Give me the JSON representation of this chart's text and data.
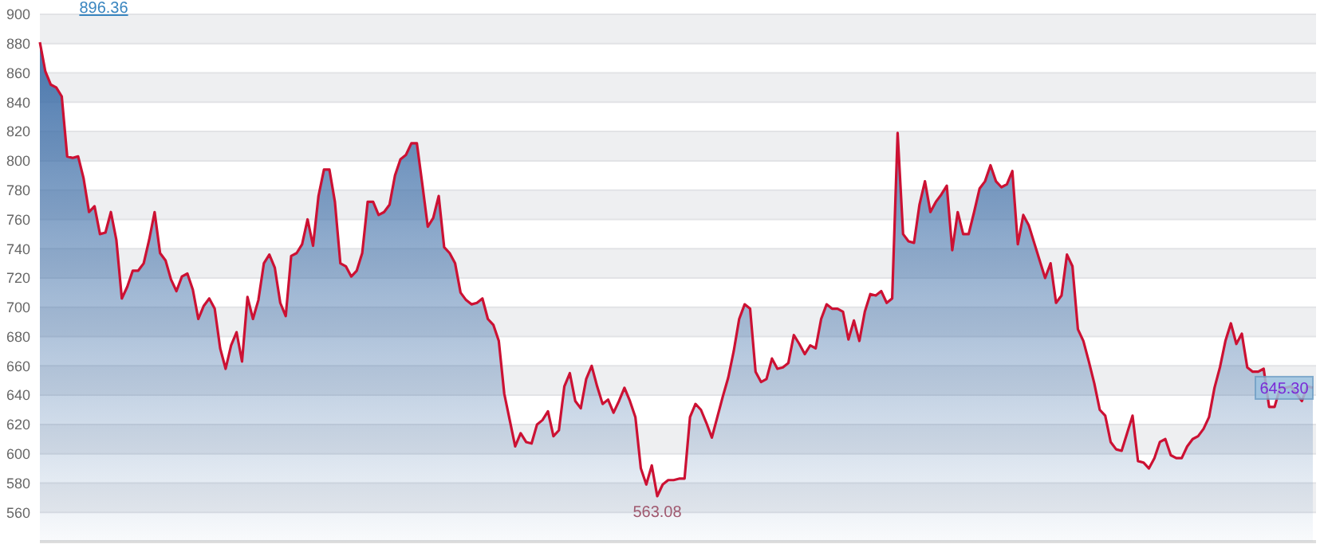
{
  "chart_data": {
    "type": "area",
    "categories": [
      null,
      null,
      null,
      null,
      null,
      null,
      null,
      null,
      null,
      null,
      null,
      null,
      null,
      null,
      null,
      null,
      null,
      null,
      null,
      null,
      null,
      null,
      null,
      null,
      null,
      null,
      null,
      null,
      null,
      null,
      null,
      null,
      null,
      null,
      null,
      null,
      null,
      null,
      null,
      null,
      null,
      null,
      null,
      null,
      null,
      null,
      null,
      null,
      null,
      null,
      null,
      null,
      null,
      null,
      null,
      null,
      null,
      null,
      null,
      null,
      null,
      null,
      null,
      null,
      null,
      null,
      null,
      null,
      null,
      null,
      null,
      null,
      null,
      null,
      null,
      null,
      null,
      null,
      null,
      null,
      null,
      null,
      null,
      null,
      null,
      null,
      null,
      null,
      null,
      null,
      null,
      null,
      null,
      null,
      null,
      null,
      null,
      null,
      null,
      null,
      null,
      null,
      null,
      null,
      null,
      null,
      null,
      null,
      null,
      null,
      null,
      null,
      null,
      null,
      null,
      null,
      null,
      null,
      null,
      null,
      null,
      null,
      null,
      null,
      null,
      null,
      null,
      null,
      null,
      null,
      null,
      null,
      null,
      null,
      null,
      null,
      null,
      null,
      null,
      null,
      null,
      null,
      null,
      null,
      null,
      null,
      null,
      null,
      null,
      null,
      null,
      null,
      null,
      null,
      null,
      null,
      null,
      null,
      null,
      null,
      null,
      null,
      null,
      null,
      null,
      null,
      null,
      null,
      null,
      null,
      null,
      null,
      null,
      null,
      null,
      null,
      null,
      null,
      null,
      null,
      null,
      null,
      null,
      null,
      null,
      null,
      null,
      null,
      null,
      null,
      null,
      null,
      null,
      null,
      null,
      null,
      null,
      null,
      null,
      null,
      null,
      null,
      null,
      null,
      null,
      null,
      null,
      null,
      null,
      null,
      null,
      null,
      null,
      null,
      null,
      null,
      null,
      null,
      null,
      null,
      null,
      null,
      null,
      null,
      null,
      null,
      null,
      null,
      null,
      null,
      null,
      null,
      null,
      null
    ],
    "series": [
      {
        "color": "#cc1133",
        "values": [
          881,
          861,
          852,
          850,
          844,
          803,
          802,
          803,
          788,
          765,
          769,
          750,
          751,
          765,
          746,
          706,
          714,
          725,
          725,
          730,
          746,
          765,
          737,
          732,
          719,
          711,
          721,
          723,
          712,
          692,
          701,
          706,
          699,
          672,
          658,
          674,
          683,
          663,
          707,
          692,
          705,
          730,
          736,
          727,
          703,
          694,
          735,
          737,
          743,
          760,
          742,
          776,
          794,
          794,
          772,
          730,
          728,
          721,
          725,
          737,
          772,
          772,
          763,
          765,
          770,
          790,
          801,
          804,
          812,
          812,
          784,
          755,
          761,
          776,
          741,
          737,
          730,
          710,
          705,
          702,
          703,
          706,
          692,
          688,
          677,
          641,
          623,
          605,
          614,
          608,
          607,
          620,
          623,
          629,
          612,
          616,
          646,
          655,
          636,
          631,
          651,
          660,
          646,
          634,
          637,
          628,
          636,
          645,
          636,
          625,
          590,
          579,
          592,
          571,
          579,
          582,
          582,
          583,
          583,
          625,
          634,
          630,
          621,
          611,
          625,
          639,
          652,
          670,
          692,
          702,
          699,
          656,
          649,
          651,
          665,
          658,
          659,
          662,
          681,
          675,
          668,
          674,
          672,
          692,
          702,
          699,
          699,
          697,
          678,
          691,
          677,
          697,
          709,
          708,
          711,
          703,
          706,
          819,
          750,
          745,
          744,
          770,
          786,
          765,
          772,
          777,
          783,
          739,
          765,
          750,
          750,
          765,
          781,
          786,
          797,
          786,
          782,
          784,
          793,
          743,
          763,
          756,
          744,
          732,
          720,
          730,
          703,
          708,
          736,
          728,
          685,
          677,
          663,
          648,
          630,
          626,
          608,
          603,
          602,
          614,
          626,
          595,
          594,
          590,
          597,
          608,
          610,
          599,
          597,
          597,
          605,
          610,
          612,
          617,
          625,
          645,
          659,
          677,
          689,
          675,
          682,
          659,
          656,
          656,
          658,
          632,
          632,
          645,
          645,
          646,
          641,
          636,
          646,
          645
        ]
      }
    ],
    "ylim": [
      540,
      900
    ],
    "yticks": [
      560,
      580,
      600,
      620,
      640,
      660,
      680,
      700,
      720,
      740,
      760,
      780,
      800,
      820,
      840,
      860,
      880,
      900
    ],
    "grid": true,
    "annotations": [
      "896.36",
      "563.08",
      "645.30"
    ]
  }
}
